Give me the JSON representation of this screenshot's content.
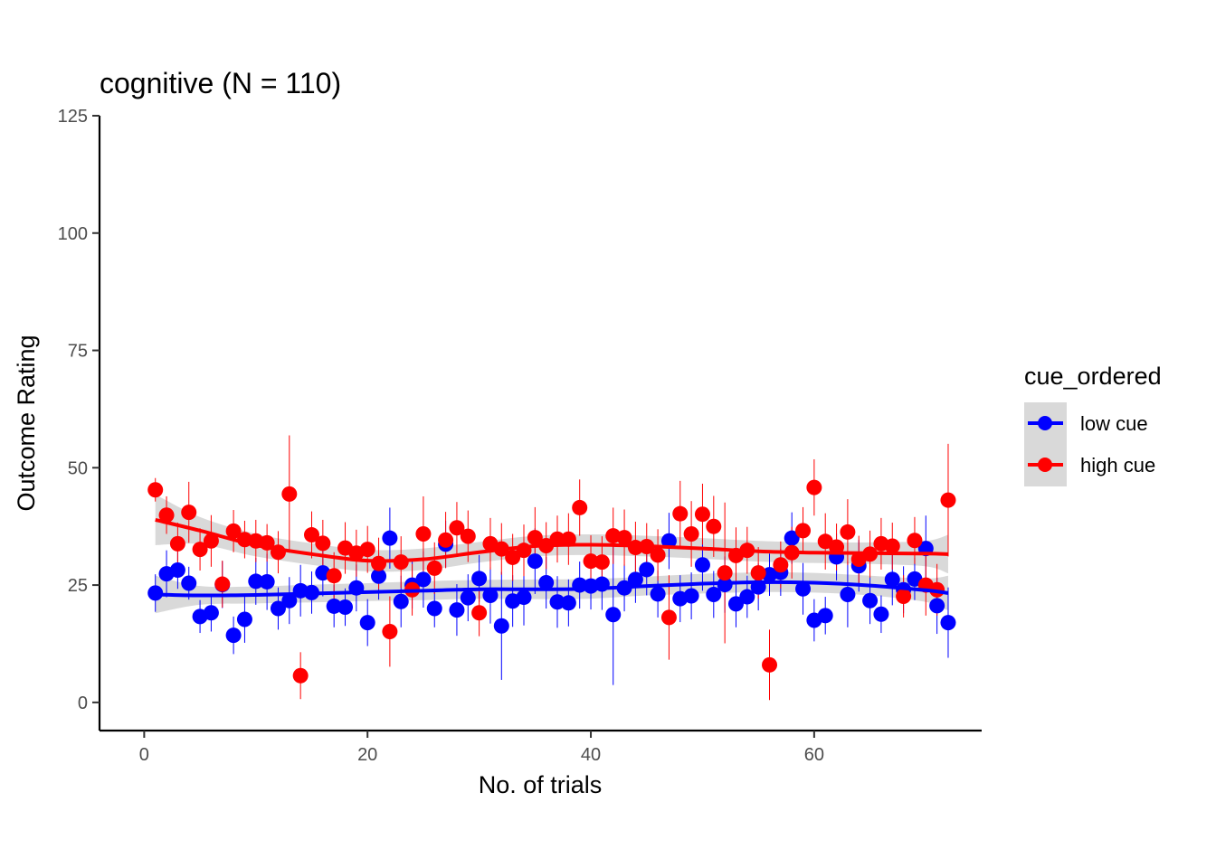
{
  "chart_data": {
    "type": "scatter",
    "title": "cognitive (N = 110)",
    "xlabel": "No. of trials",
    "ylabel": "Outcome Rating",
    "xlim": [
      -4,
      75
    ],
    "ylim": [
      -6,
      125
    ],
    "xticks": [
      0,
      20,
      40,
      60
    ],
    "yticks": [
      0,
      25,
      50,
      75,
      100,
      125
    ],
    "grid": false,
    "legend": {
      "title": "cue_ordered",
      "position": "right"
    },
    "series": [
      {
        "name": "low cue",
        "color": "#0000ff",
        "x": [
          1,
          2,
          3,
          4,
          5,
          6,
          7,
          8,
          9,
          10,
          11,
          12,
          13,
          14,
          15,
          16,
          17,
          18,
          19,
          20,
          21,
          22,
          23,
          24,
          25,
          26,
          27,
          28,
          29,
          30,
          31,
          32,
          33,
          34,
          35,
          36,
          37,
          38,
          39,
          40,
          41,
          42,
          43,
          44,
          45,
          46,
          47,
          48,
          49,
          50,
          51,
          52,
          53,
          54,
          55,
          56,
          57,
          58,
          59,
          60,
          61,
          62,
          63,
          64,
          65,
          66,
          67,
          68,
          69,
          70,
          71,
          72
        ],
        "y": [
          23.3,
          27.4,
          28.2,
          25.4,
          18.3,
          19.1,
          25.1,
          14.3,
          17.7,
          25.8,
          25.7,
          20.0,
          21.7,
          23.8,
          23.4,
          27.6,
          20.5,
          20.3,
          24.4,
          17.0,
          26.9,
          35.0,
          21.5,
          25.0,
          26.2,
          20.0,
          33.7,
          19.7,
          22.3,
          26.4,
          22.8,
          16.3,
          21.6,
          22.4,
          30.1,
          25.5,
          21.4,
          21.2,
          25.0,
          24.8,
          25.2,
          18.7,
          24.4,
          26.2,
          28.3,
          23.1,
          34.4,
          22.1,
          22.7,
          29.3,
          23.0,
          25.1,
          21.0,
          22.5,
          24.6,
          27.2,
          27.7,
          35.0,
          24.2,
          17.5,
          18.5,
          31.0,
          23.0,
          29.1,
          21.7,
          18.8,
          26.2,
          24.0,
          26.3,
          32.8,
          20.6,
          17.0
        ],
        "err": [
          4.0,
          5.0,
          4.0,
          3.5,
          3.5,
          4.0,
          5.0,
          4.0,
          5.0,
          5.0,
          6.0,
          4.5,
          5.0,
          5.5,
          4.5,
          5.0,
          4.5,
          4.0,
          5.0,
          5.0,
          5.0,
          6.5,
          5.5,
          5.0,
          6.0,
          4.0,
          5.0,
          5.5,
          5.0,
          5.0,
          6.0,
          11.5,
          5.5,
          6.0,
          7.0,
          5.5,
          5.5,
          5.0,
          5.0,
          5.0,
          5.5,
          15.0,
          5.0,
          5.0,
          5.5,
          5.0,
          6.0,
          5.0,
          5.0,
          5.5,
          5.0,
          6.0,
          5.0,
          4.5,
          5.0,
          4.5,
          5.0,
          5.5,
          5.5,
          4.5,
          4.0,
          5.0,
          7.0,
          5.5,
          5.0,
          4.0,
          5.5,
          5.0,
          4.5,
          7.0,
          6.0,
          7.5
        ],
        "smooth": {
          "x": [
            1,
            5,
            10,
            15,
            20,
            25,
            30,
            35,
            40,
            45,
            50,
            55,
            60,
            65,
            70,
            72
          ],
          "y": [
            23.0,
            22.8,
            22.9,
            23.2,
            23.5,
            23.8,
            24.1,
            24.1,
            24.2,
            24.8,
            25.3,
            25.6,
            25.5,
            24.9,
            23.9,
            23.3
          ],
          "lower": [
            19.0,
            20.8,
            21.1,
            21.3,
            21.6,
            21.8,
            22.1,
            22.0,
            22.1,
            22.8,
            23.2,
            23.5,
            23.4,
            22.8,
            21.4,
            19.6
          ],
          "upper": [
            27.0,
            24.8,
            24.7,
            25.1,
            25.4,
            25.8,
            26.1,
            26.2,
            26.3,
            26.8,
            27.4,
            27.7,
            27.6,
            27.0,
            26.4,
            27.0
          ]
        }
      },
      {
        "name": "high cue",
        "color": "#ff0000",
        "x": [
          1,
          2,
          3,
          4,
          5,
          6,
          7,
          8,
          9,
          10,
          11,
          12,
          13,
          14,
          15,
          16,
          17,
          18,
          19,
          20,
          21,
          22,
          23,
          24,
          25,
          26,
          27,
          28,
          29,
          30,
          31,
          32,
          33,
          34,
          35,
          36,
          37,
          38,
          39,
          40,
          41,
          42,
          43,
          44,
          45,
          46,
          47,
          48,
          49,
          50,
          51,
          52,
          53,
          54,
          55,
          56,
          57,
          58,
          59,
          60,
          61,
          62,
          63,
          64,
          65,
          66,
          67,
          68,
          69,
          70,
          71,
          72
        ],
        "y": [
          45.3,
          39.9,
          33.8,
          40.5,
          32.6,
          34.4,
          25.2,
          36.5,
          34.7,
          34.4,
          34.0,
          32.0,
          44.4,
          5.7,
          35.7,
          33.9,
          27.0,
          32.9,
          31.8,
          32.6,
          29.6,
          15.1,
          29.9,
          24.0,
          35.9,
          28.6,
          34.6,
          37.2,
          35.4,
          19.1,
          33.8,
          32.7,
          30.9,
          32.4,
          35.1,
          33.4,
          34.8,
          34.8,
          41.5,
          30.1,
          29.9,
          35.5,
          35.1,
          33.0,
          33.2,
          31.4,
          18.1,
          40.2,
          35.9,
          40.1,
          37.5,
          27.6,
          31.3,
          32.4,
          27.6,
          8.0,
          29.3,
          31.9,
          36.6,
          45.8,
          34.3,
          33.1,
          36.3,
          30.5,
          31.6,
          33.8,
          33.3,
          22.6,
          34.5,
          25.0,
          24.0,
          43.1
        ],
        "err": [
          2.5,
          4.0,
          4.5,
          6.5,
          4.5,
          5.5,
          5.0,
          4.5,
          4.0,
          4.5,
          4.0,
          4.5,
          12.5,
          5.0,
          5.0,
          5.0,
          5.0,
          5.5,
          5.0,
          5.0,
          5.5,
          7.5,
          5.5,
          5.5,
          8.0,
          5.5,
          6.0,
          5.5,
          5.5,
          5.0,
          5.5,
          5.5,
          5.0,
          5.5,
          6.5,
          5.0,
          5.0,
          5.5,
          6.0,
          5.5,
          5.5,
          6.0,
          6.0,
          5.5,
          5.0,
          5.5,
          9.0,
          7.0,
          7.0,
          6.5,
          6.5,
          15.0,
          6.0,
          5.0,
          5.5,
          7.5,
          5.0,
          5.5,
          5.0,
          6.0,
          6.0,
          5.0,
          7.0,
          5.0,
          5.0,
          5.5,
          5.0,
          4.5,
          5.0,
          6.5,
          5.5,
          12.0
        ],
        "smooth": {
          "x": [
            1,
            5,
            10,
            15,
            20,
            25,
            30,
            35,
            40,
            45,
            50,
            55,
            60,
            65,
            70,
            72
          ],
          "y": [
            38.9,
            36.6,
            33.5,
            31.6,
            30.2,
            30.5,
            32.0,
            33.3,
            33.6,
            33.3,
            32.8,
            32.2,
            31.9,
            31.8,
            31.7,
            31.6
          ],
          "lower": [
            33.5,
            33.7,
            31.1,
            29.3,
            27.9,
            28.2,
            29.8,
            31.1,
            31.4,
            31.1,
            30.6,
            30.0,
            29.7,
            29.5,
            29.0,
            27.5
          ],
          "upper": [
            44.3,
            39.5,
            35.9,
            33.9,
            32.5,
            32.8,
            34.2,
            35.5,
            35.8,
            35.5,
            35.0,
            34.4,
            34.1,
            34.1,
            34.4,
            35.7
          ]
        }
      }
    ]
  }
}
